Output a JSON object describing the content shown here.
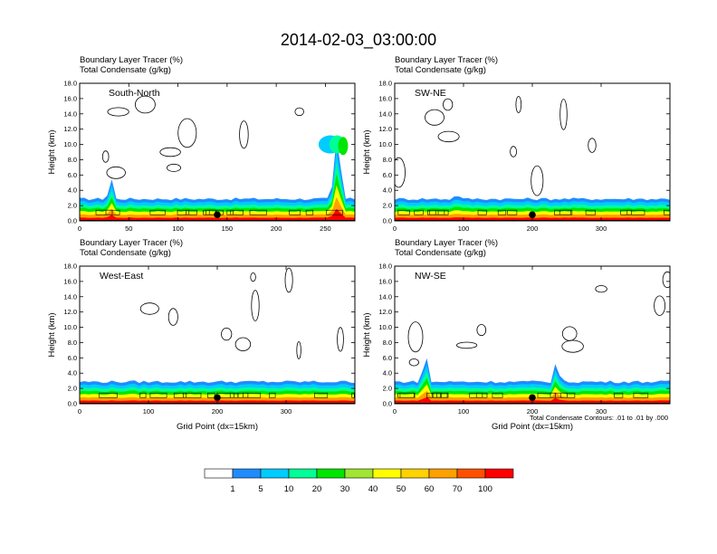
{
  "title": "2014-02-03_03:00:00",
  "subtitle_line1": "Boundary Layer Tracer    (%)",
  "subtitle_line2": "Total Condensate    (g/kg)",
  "contour_note": "Total Condensate Contours: .01 to .01 by .000",
  "chart_data": [
    {
      "type": "heatmap",
      "panel": "South-North",
      "ylabel": "Height (km)",
      "xlabel": "",
      "xlim": [
        0,
        280
      ],
      "ylim": [
        0,
        18
      ],
      "xticks": [
        0,
        50,
        100,
        150,
        200,
        250
      ],
      "yticks": [
        "0.0",
        "2.0",
        "4.0",
        "6.0",
        "8.0",
        "10.0",
        "12.0",
        "14.0",
        "16.0",
        "18.0"
      ],
      "marker": {
        "x": 140,
        "y": 0.8
      },
      "peaks": [
        {
          "x": 32,
          "h": 5.5
        },
        {
          "x": 262,
          "h": 11
        }
      ]
    },
    {
      "type": "heatmap",
      "panel": "SW-NE",
      "ylabel": "Height (km)",
      "xlabel": "",
      "xlim": [
        0,
        400
      ],
      "ylim": [
        0,
        18
      ],
      "xticks": [
        0,
        100,
        200,
        300
      ],
      "yticks": [
        "0.0",
        "2.0",
        "4.0",
        "6.0",
        "8.0",
        "10.0",
        "12.0",
        "14.0",
        "16.0",
        "18.0"
      ],
      "marker": {
        "x": 200,
        "y": 0.8
      },
      "peaks": [
        {
          "x": 90,
          "h": 3.8
        }
      ]
    },
    {
      "type": "heatmap",
      "panel": "West-East",
      "ylabel": "Height (km)",
      "xlabel": "Grid Point (dx=15km)",
      "xlim": [
        0,
        400
      ],
      "ylim": [
        0,
        18
      ],
      "xticks": [
        0,
        100,
        200,
        300
      ],
      "yticks": [
        "0.0",
        "2.0",
        "4.0",
        "6.0",
        "8.0",
        "10.0",
        "12.0",
        "14.0",
        "16.0",
        "18.0"
      ],
      "marker": {
        "x": 200,
        "y": 0.8
      },
      "peaks": []
    },
    {
      "type": "heatmap",
      "panel": "NW-SE",
      "ylabel": "Height (km)",
      "xlabel": "Grid Point (dx=15km)",
      "xlim": [
        0,
        400
      ],
      "ylim": [
        0,
        18
      ],
      "xticks": [
        0,
        100,
        200,
        300
      ],
      "yticks": [
        "0.0",
        "2.0",
        "4.0",
        "6.0",
        "8.0",
        "10.0",
        "12.0",
        "14.0",
        "16.0",
        "18.0"
      ],
      "marker": {
        "x": 200,
        "y": 0.8
      },
      "peaks": [
        {
          "x": 45,
          "h": 6.2
        },
        {
          "x": 235,
          "h": 5.4
        }
      ]
    }
  ],
  "colorbar": {
    "colors": [
      "#ffffff",
      "#1e8cff",
      "#00ccff",
      "#00ff96",
      "#00e600",
      "#a0e632",
      "#ffff00",
      "#ffd200",
      "#ffa000",
      "#ff5000",
      "#ff0000"
    ],
    "labels": [
      "1",
      "5",
      "10",
      "20",
      "30",
      "40",
      "50",
      "60",
      "70",
      "100"
    ]
  }
}
